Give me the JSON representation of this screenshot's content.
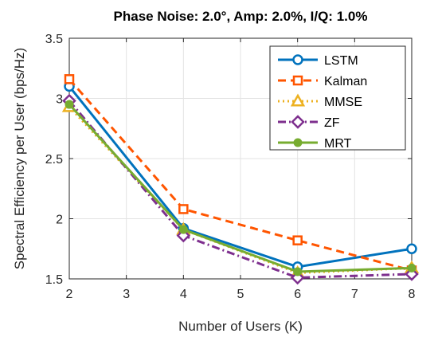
{
  "chart_data": {
    "type": "line",
    "title": "Phase Noise: 2.0°, Amp: 2.0%, I/Q: 1.0%",
    "xlabel": "Number of Users (K)",
    "ylabel": "Spectral Efficiency per User (bps/Hz)",
    "xlim": [
      2,
      8
    ],
    "ylim": [
      1.5,
      3.5
    ],
    "xticks": [
      "2",
      "3",
      "4",
      "5",
      "6",
      "7",
      "8"
    ],
    "yticks": [
      "1.5",
      "2",
      "2.5",
      "3",
      "3.5"
    ],
    "grid": true,
    "legend_position": "top-right",
    "x": [
      2,
      4,
      6,
      8
    ],
    "series": [
      {
        "name": "LSTM",
        "values": [
          3.1,
          1.92,
          1.6,
          1.75
        ],
        "color": "#0072BD",
        "dash": "solid",
        "marker": "circle"
      },
      {
        "name": "Kalman",
        "values": [
          3.16,
          2.08,
          1.82,
          1.57
        ],
        "color": "#FF5500",
        "dash": "dashed",
        "marker": "square"
      },
      {
        "name": "MMSE",
        "values": [
          2.93,
          1.91,
          1.55,
          1.59
        ],
        "color": "#EDB120",
        "dash": "dotted",
        "marker": "triangle"
      },
      {
        "name": "ZF",
        "values": [
          2.98,
          1.86,
          1.51,
          1.54
        ],
        "color": "#7E2F8E",
        "dash": "dashdot",
        "marker": "diamond"
      },
      {
        "name": "MRT",
        "values": [
          2.95,
          1.91,
          1.56,
          1.59
        ],
        "color": "#77AC30",
        "dash": "solid",
        "marker": "dot"
      }
    ]
  }
}
